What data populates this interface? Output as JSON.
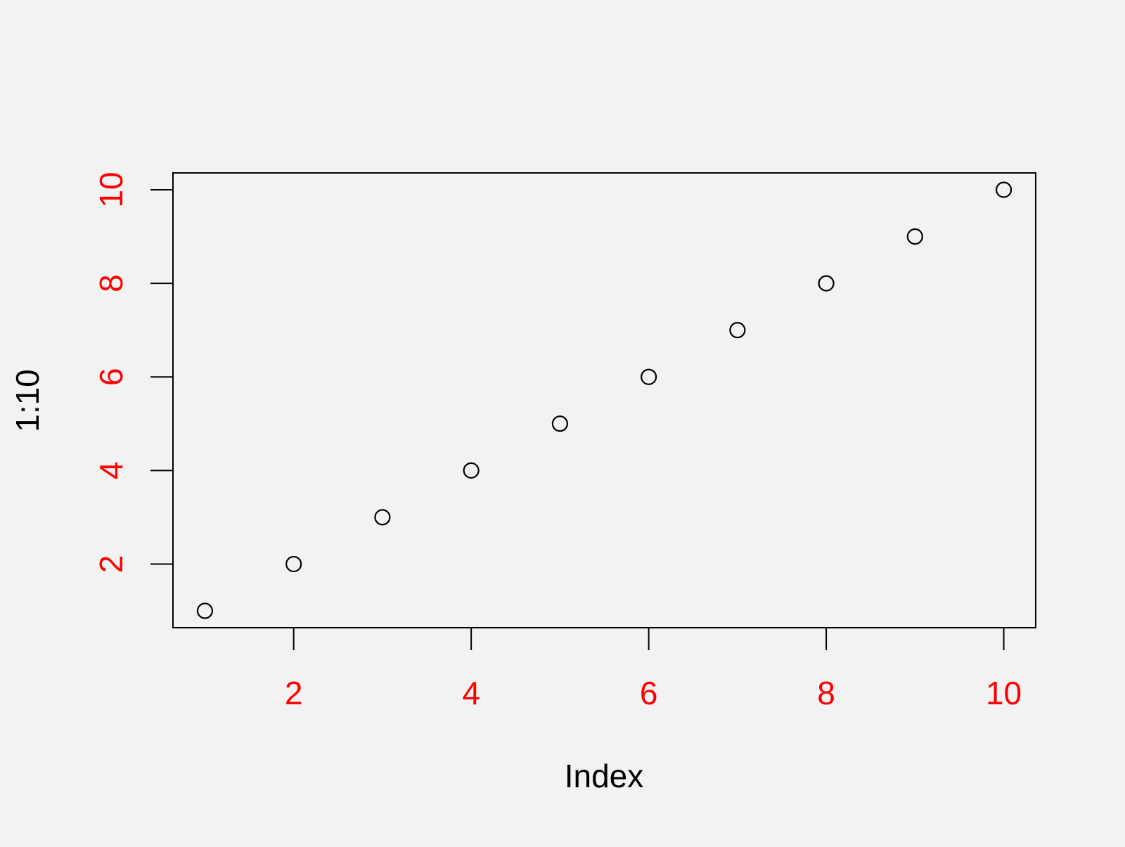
{
  "chart_data": {
    "type": "scatter",
    "title": "",
    "xlabel": "Index",
    "ylabel": "1:10",
    "x": [
      1,
      2,
      3,
      4,
      5,
      6,
      7,
      8,
      9,
      10
    ],
    "y": [
      1,
      2,
      3,
      4,
      5,
      6,
      7,
      8,
      9,
      10
    ],
    "xlim": [
      0.64,
      10.36
    ],
    "ylim": [
      0.64,
      10.36
    ],
    "x_ticks": [
      2,
      4,
      6,
      8,
      10
    ],
    "y_ticks": [
      2,
      4,
      6,
      8,
      10
    ],
    "x_tick_labels": [
      "2",
      "4",
      "6",
      "8",
      "10"
    ],
    "y_tick_labels": [
      "2",
      "4",
      "6",
      "8",
      "10"
    ],
    "grid": false,
    "marker": "open-circle",
    "colors": {
      "background": "#f2f2f2",
      "axis": "#000000",
      "tick_label": "#ff0000",
      "axis_label": "#000000",
      "point": "#000000"
    }
  }
}
